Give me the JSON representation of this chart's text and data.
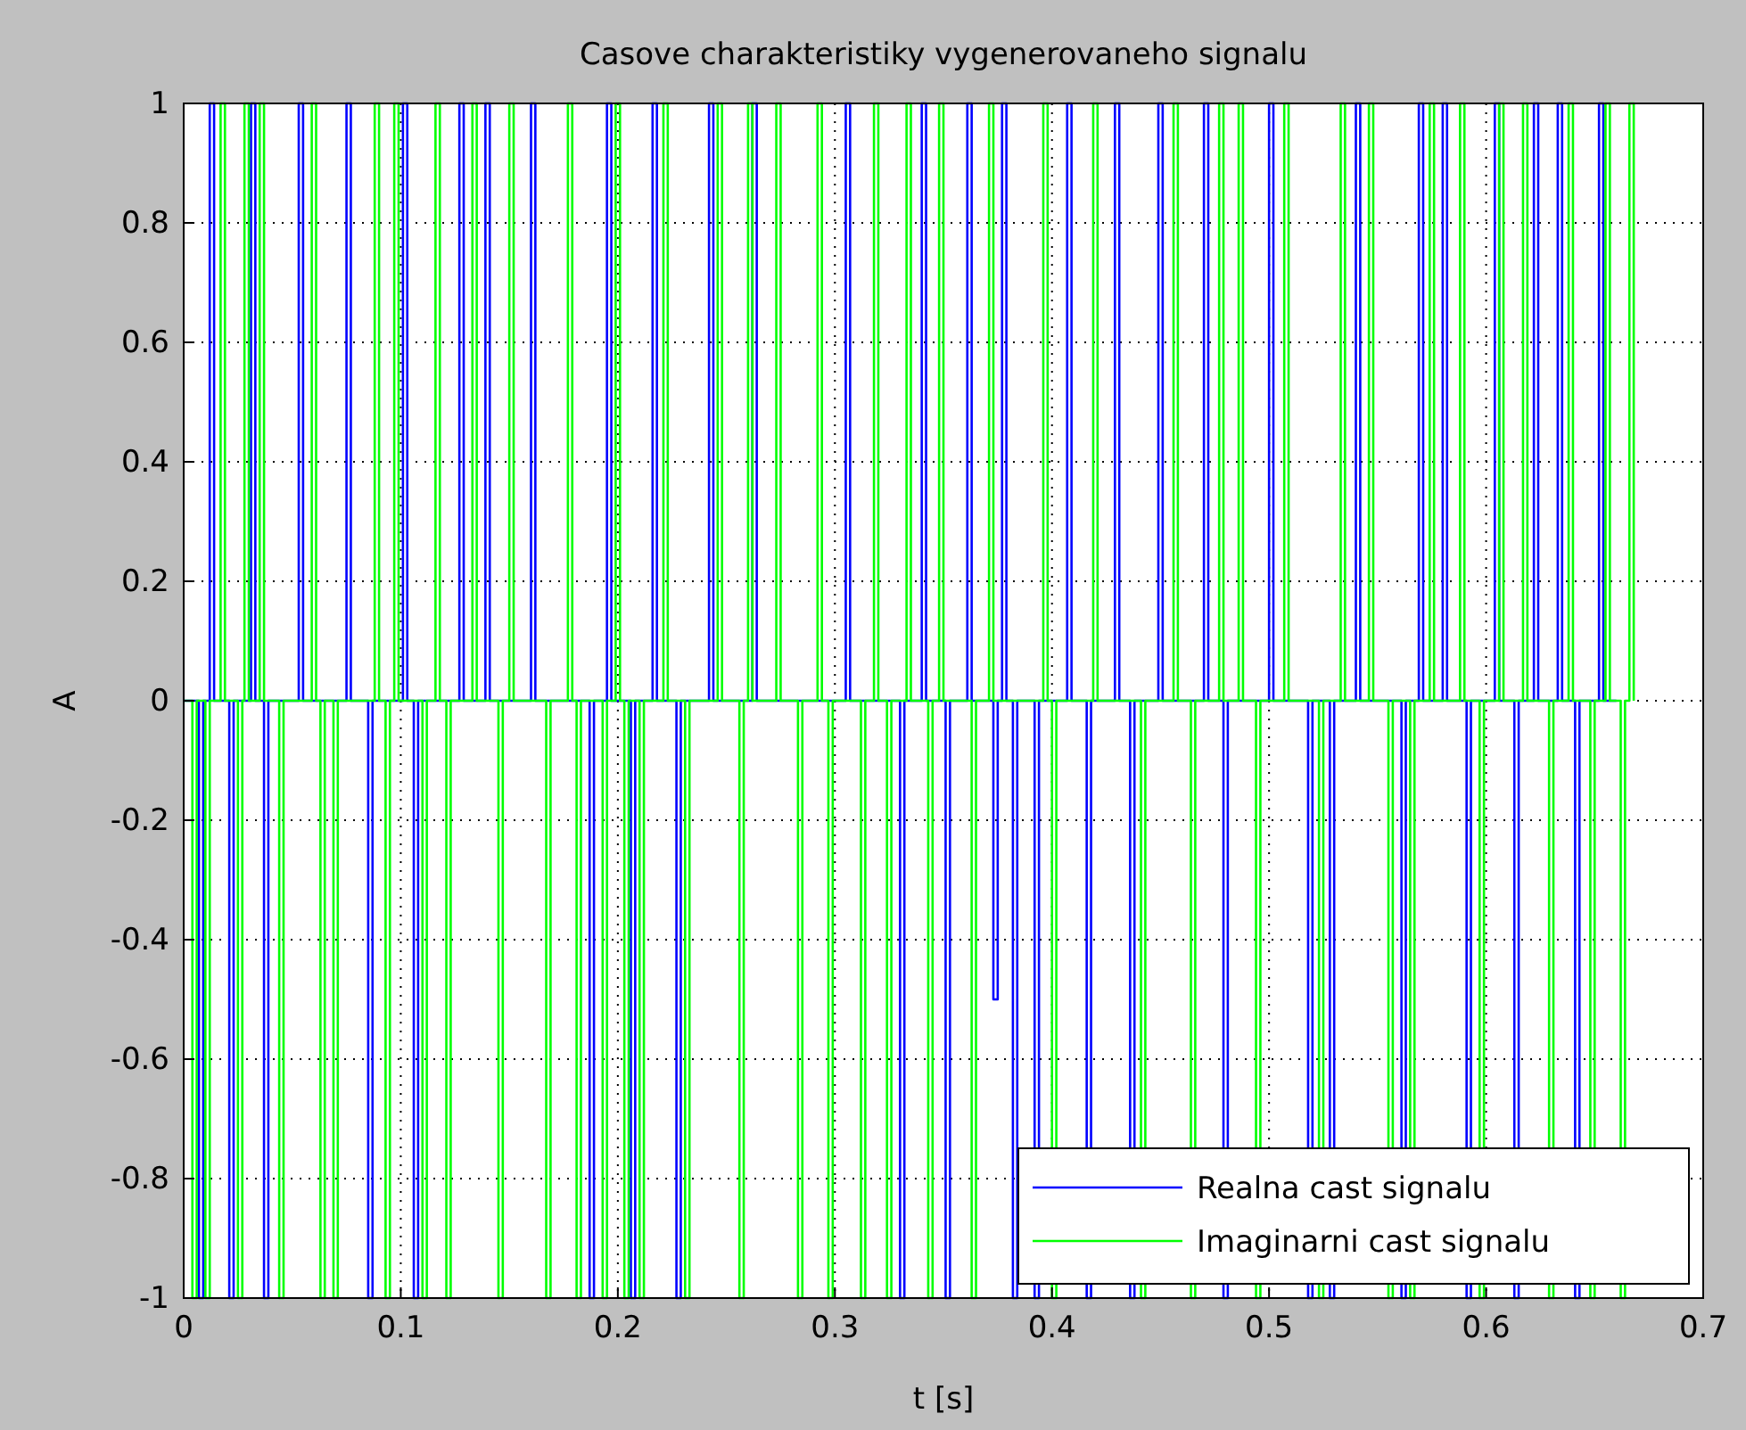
{
  "chart_data": {
    "type": "step",
    "title": "Casove charakteristiky vygenerovaneho signalu",
    "xlabel": "t [s]",
    "ylabel": "A",
    "xlim": [
      0,
      0.7
    ],
    "xticks": [
      0,
      0.1,
      0.2,
      0.3,
      0.4,
      0.5,
      0.6,
      0.7
    ],
    "ylim": [
      -1,
      1
    ],
    "yticks": [
      -1,
      -0.8,
      -0.6,
      -0.4,
      -0.2,
      0,
      0.2,
      0.4,
      0.6,
      0.8,
      1
    ],
    "grid": true,
    "legend": "bottom right",
    "line_style": "solid",
    "series": [
      {
        "name": "Realna cast signalu",
        "color": "#0000ff",
        "x": [
          0,
          0.007,
          0.009,
          0.012,
          0.014,
          0.021,
          0.023,
          0.031,
          0.033,
          0.037,
          0.039,
          0.053,
          0.055,
          0.075,
          0.077,
          0.085,
          0.087,
          0.101,
          0.103,
          0.106,
          0.108,
          0.127,
          0.129,
          0.139,
          0.141,
          0.16,
          0.162,
          0.187,
          0.189,
          0.195,
          0.197,
          0.206,
          0.208,
          0.216,
          0.218,
          0.227,
          0.229,
          0.242,
          0.244,
          0.262,
          0.264,
          0.305,
          0.307,
          0.33,
          0.332,
          0.34,
          0.342,
          0.351,
          0.353,
          0.361,
          0.363,
          0.373,
          0.375,
          0.377,
          0.379,
          0.382,
          0.384,
          0.392,
          0.394,
          0.407,
          0.409,
          0.416,
          0.418,
          0.429,
          0.431,
          0.436,
          0.438,
          0.449,
          0.451,
          0.47,
          0.472,
          0.479,
          0.481,
          0.5,
          0.502,
          0.518,
          0.52,
          0.528,
          0.53,
          0.54,
          0.542,
          0.561,
          0.563,
          0.569,
          0.571,
          0.58,
          0.582,
          0.591,
          0.593,
          0.604,
          0.606,
          0.613,
          0.615,
          0.622,
          0.624,
          0.633,
          0.635,
          0.641,
          0.643,
          0.652,
          0.654,
          0.66
        ],
        "values": [
          0,
          -1,
          0,
          1,
          0,
          -1,
          0,
          1,
          0,
          -1,
          0,
          1,
          0,
          1,
          0,
          -1,
          0,
          1,
          0,
          -1,
          0,
          1,
          0,
          1,
          0,
          1,
          0,
          -1,
          0,
          1,
          0,
          -1,
          0,
          1,
          0,
          -1,
          0,
          1,
          0,
          1,
          0,
          1,
          0,
          -1,
          0,
          1,
          0,
          -1,
          0,
          1,
          0,
          -0.5,
          0,
          1,
          0,
          -1,
          0,
          -1,
          0,
          1,
          0,
          -1,
          0,
          1,
          0,
          -1,
          0,
          1,
          0,
          1,
          0,
          -1,
          0,
          1,
          0,
          -1,
          0,
          -1,
          0,
          1,
          0,
          -1,
          0,
          1,
          0,
          1,
          0,
          -1,
          0,
          1,
          0,
          -1,
          0,
          1,
          0,
          1,
          0,
          -1,
          0,
          1,
          0,
          0
        ]
      },
      {
        "name": "Imaginarni cast signalu",
        "color": "#00ff00",
        "x": [
          0,
          0.004,
          0.006,
          0.01,
          0.012,
          0.017,
          0.019,
          0.025,
          0.027,
          0.028,
          0.03,
          0.035,
          0.037,
          0.044,
          0.046,
          0.059,
          0.061,
          0.063,
          0.065,
          0.069,
          0.071,
          0.088,
          0.09,
          0.093,
          0.095,
          0.097,
          0.099,
          0.11,
          0.112,
          0.116,
          0.118,
          0.121,
          0.123,
          0.133,
          0.135,
          0.145,
          0.147,
          0.15,
          0.152,
          0.167,
          0.169,
          0.177,
          0.179,
          0.181,
          0.183,
          0.193,
          0.195,
          0.199,
          0.201,
          0.203,
          0.205,
          0.21,
          0.212,
          0.221,
          0.223,
          0.231,
          0.233,
          0.246,
          0.248,
          0.256,
          0.258,
          0.26,
          0.262,
          0.273,
          0.275,
          0.283,
          0.285,
          0.292,
          0.294,
          0.297,
          0.299,
          0.312,
          0.314,
          0.318,
          0.32,
          0.324,
          0.326,
          0.333,
          0.335,
          0.343,
          0.345,
          0.348,
          0.35,
          0.363,
          0.365,
          0.371,
          0.373,
          0.396,
          0.398,
          0.4,
          0.402,
          0.419,
          0.421,
          0.441,
          0.443,
          0.456,
          0.458,
          0.464,
          0.466,
          0.477,
          0.479,
          0.486,
          0.488,
          0.494,
          0.496,
          0.507,
          0.509,
          0.523,
          0.525,
          0.533,
          0.535,
          0.546,
          0.548,
          0.555,
          0.557,
          0.565,
          0.567,
          0.574,
          0.576,
          0.588,
          0.59,
          0.597,
          0.599,
          0.606,
          0.608,
          0.617,
          0.619,
          0.629,
          0.631,
          0.638,
          0.64,
          0.648,
          0.65,
          0.655,
          0.657,
          0.662,
          0.664,
          0.666,
          0.668
        ],
        "values": [
          0,
          -1,
          0,
          -1,
          0,
          1,
          0,
          -1,
          0,
          1,
          0,
          1,
          0,
          -1,
          0,
          1,
          0,
          -1,
          0,
          -1,
          0,
          1,
          0,
          -1,
          0,
          1,
          0,
          -1,
          0,
          1,
          0,
          -1,
          0,
          1,
          0,
          -1,
          0,
          1,
          0,
          -1,
          0,
          1,
          0,
          -1,
          0,
          -1,
          0,
          1,
          0,
          -1,
          0,
          -1,
          0,
          1,
          0,
          -1,
          0,
          1,
          0,
          -1,
          0,
          1,
          0,
          1,
          0,
          -1,
          0,
          1,
          0,
          -1,
          0,
          -1,
          0,
          1,
          0,
          -1,
          0,
          1,
          0,
          -1,
          0,
          1,
          0,
          -1,
          0,
          1,
          0,
          1,
          0,
          -1,
          0,
          1,
          0,
          -1,
          0,
          1,
          0,
          -1,
          0,
          1,
          0,
          1,
          0,
          -1,
          0,
          1,
          0,
          -1,
          0,
          1,
          0,
          1,
          0,
          -1,
          0,
          -1,
          0,
          1,
          0,
          1,
          0,
          -1,
          0,
          1,
          0,
          1,
          0,
          -1,
          0,
          1,
          0,
          -1,
          0,
          1,
          0,
          -1,
          0,
          1,
          0
        ]
      }
    ]
  }
}
